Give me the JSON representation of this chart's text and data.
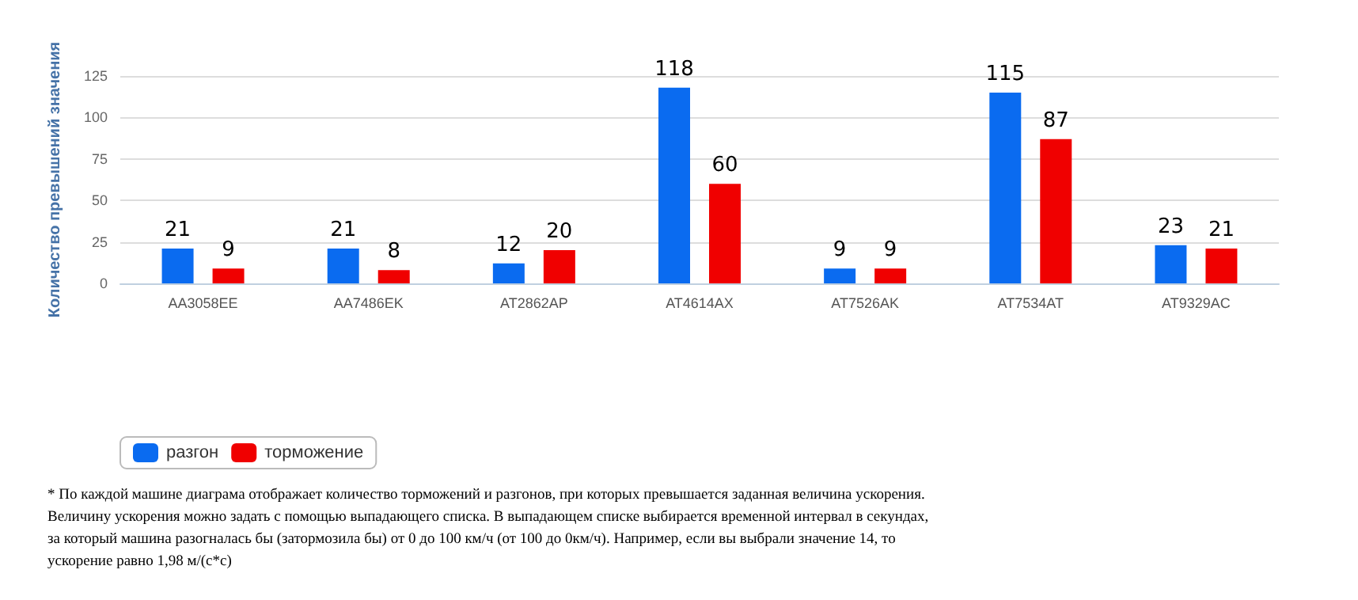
{
  "chart_data": {
    "type": "bar",
    "ylabel": "Количество превышений значения",
    "categories": [
      "AA3058EE",
      "AA7486EK",
      "AT2862AP",
      "AT4614AX",
      "AT7526AK",
      "AT7534AT",
      "AT9329AC"
    ],
    "series": [
      {
        "name": "разгон",
        "color": "#0a6bf0",
        "values": [
          21,
          21,
          12,
          118,
          9,
          115,
          23
        ]
      },
      {
        "name": "торможение",
        "color": "#f00000",
        "values": [
          9,
          8,
          20,
          60,
          9,
          87,
          21
        ]
      }
    ],
    "ylim": [
      0,
      125
    ],
    "yticks": [
      0,
      25,
      50,
      75,
      100,
      125
    ],
    "grid": "y",
    "legend": "bottom left",
    "data_labels": true,
    "annotations": [
      "* По каждой машине диаграма отображает количество торможений и разгонов, при которых превышается заданная величина ускорения. Величину ускорения можно задать с помощью выпадающего списка. В выпадающем списке выбирается временной интервал в секундах, за который машина разогналась бы (затормозила бы) от 0 до 100 км/ч (от 100 до 0км/ч). Например, если вы выбрали значение 14, то ускорение равно 1,98 м/(с*с)"
    ]
  }
}
